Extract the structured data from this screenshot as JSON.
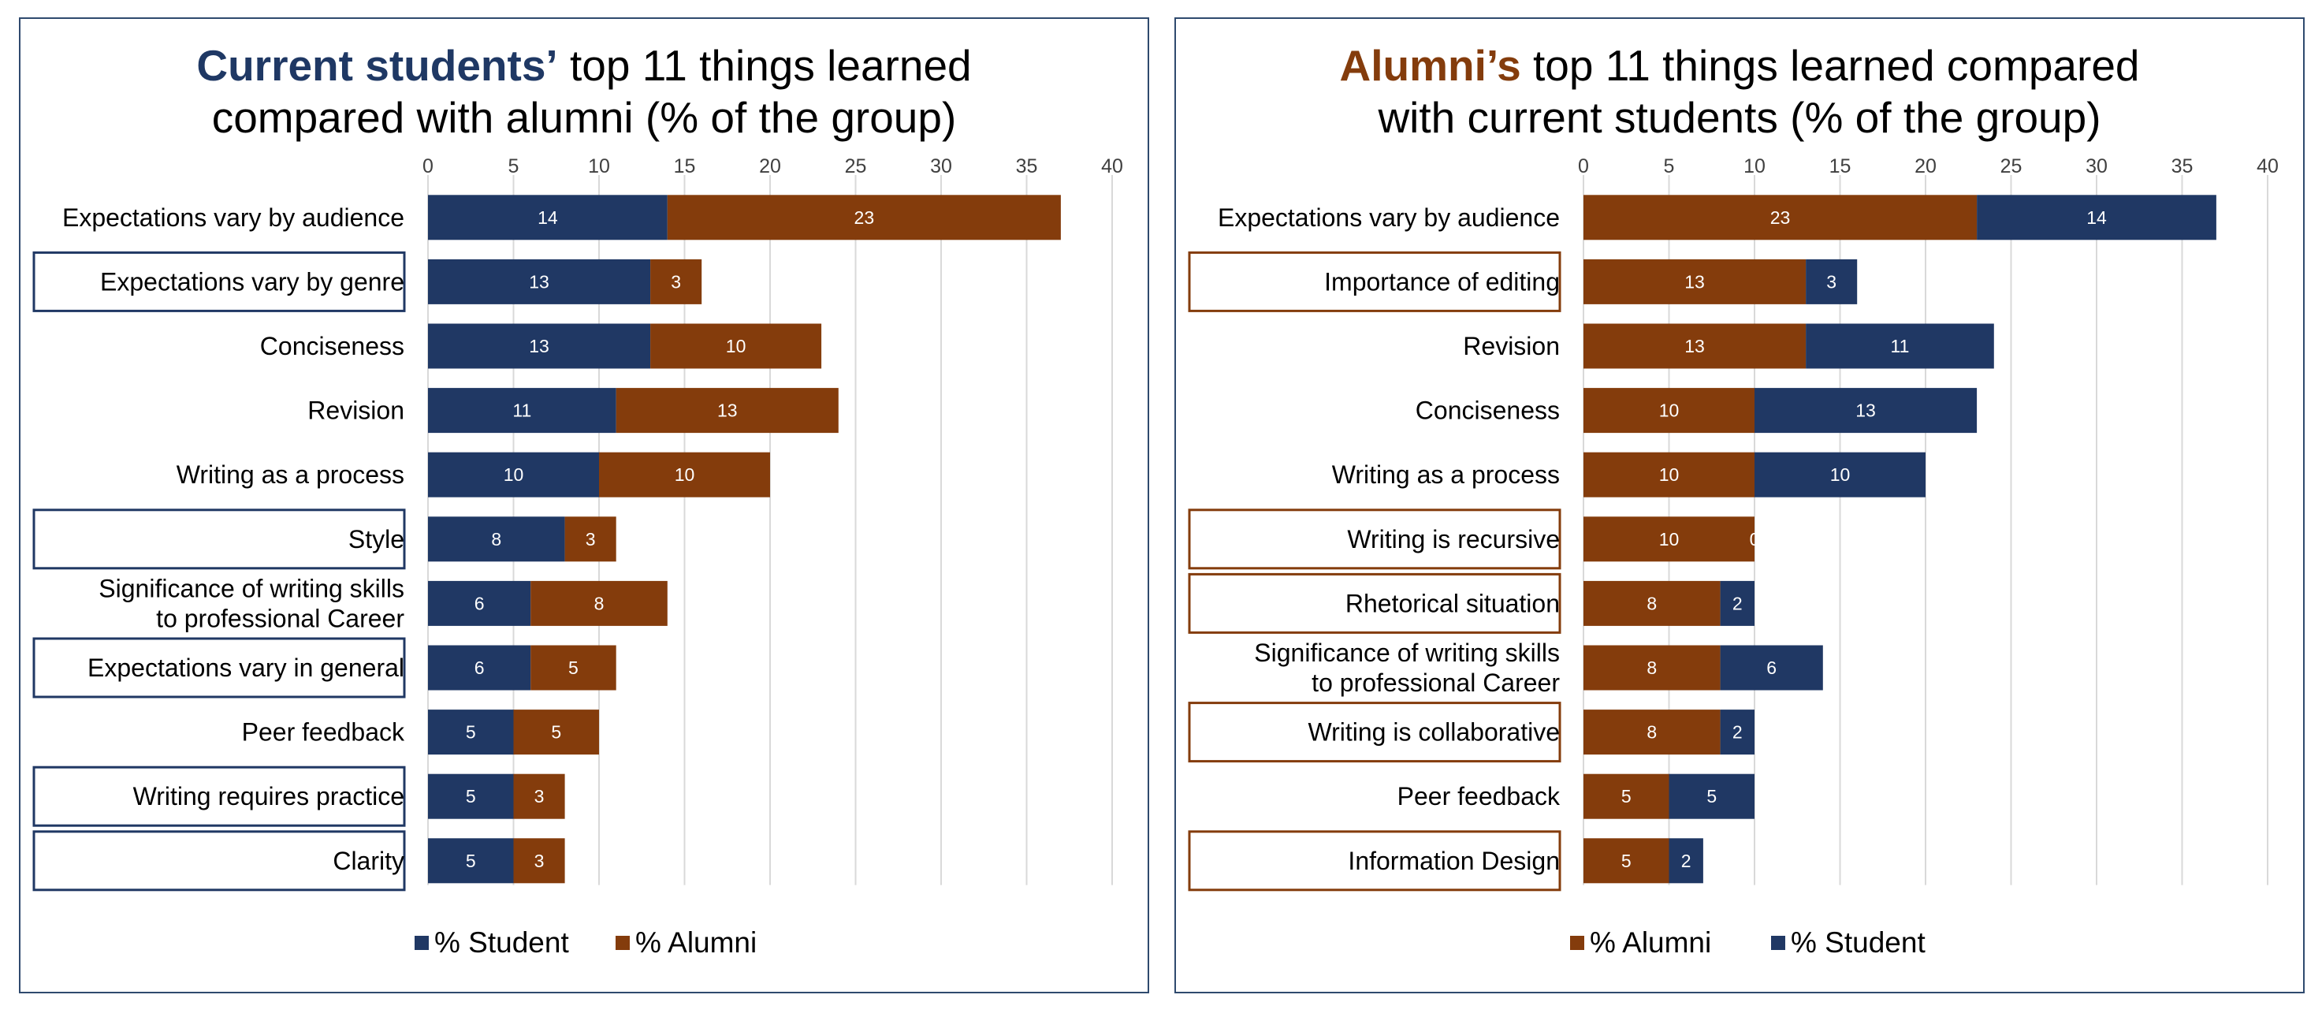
{
  "colors": {
    "student": "#203864",
    "alumni": "#843c0c",
    "grid": "#d9d9d9",
    "axis_text": "#404040"
  },
  "chart_data": [
    {
      "type": "bar",
      "orientation": "horizontal",
      "stacked": true,
      "title_emphasis": "Current students’",
      "title_rest": " top 11 things learned",
      "title_line2": "compared with alumni (% of the group)",
      "xlim": [
        0,
        40
      ],
      "xticks": [
        "0",
        "5",
        "10",
        "15",
        "20",
        "25",
        "30",
        "35",
        "40"
      ],
      "grid": true,
      "legend_placement": "bottom-center",
      "categories": [
        "Expectations vary by audience",
        "Expectations vary by genre",
        "Conciseness",
        "Revision",
        "Writing as a process",
        "Style",
        "Significance of writing skills|to professional Career",
        "Expectations vary in general",
        "Peer feedback",
        "Writing requires practice",
        "Clarity"
      ],
      "boxed": [
        false,
        true,
        false,
        false,
        false,
        true,
        false,
        true,
        false,
        true,
        true
      ],
      "box_color": "#203864",
      "series": [
        {
          "name": "% Student",
          "color": "#203864",
          "values": [
            14,
            13,
            13,
            11,
            10,
            8,
            6,
            6,
            5,
            5,
            5
          ],
          "labels": [
            "14",
            "13",
            "13",
            "11",
            "10",
            "8",
            "6",
            "6",
            "5",
            "5",
            "5"
          ]
        },
        {
          "name": "% Alumni",
          "color": "#843c0c",
          "values": [
            23,
            3,
            10,
            13,
            10,
            3,
            8,
            5,
            5,
            3,
            3
          ],
          "labels": [
            "23",
            "3",
            "10",
            "13",
            "10",
            "3",
            "8",
            "5",
            "5",
            "3",
            "3"
          ]
        }
      ]
    },
    {
      "type": "bar",
      "orientation": "horizontal",
      "stacked": true,
      "title_emphasis": "Alumni’s",
      "title_rest": " top 11 things learned compared",
      "title_line2": "with current students (% of the group)",
      "xlim": [
        0,
        40
      ],
      "xticks": [
        "0",
        "5",
        "10",
        "15",
        "20",
        "25",
        "30",
        "35",
        "40"
      ],
      "grid": true,
      "legend_placement": "bottom-center",
      "categories": [
        "Expectations vary by audience",
        "Importance of editing",
        "Revision",
        "Conciseness",
        "Writing as a process",
        "Writing is recursive",
        "Rhetorical situation",
        "Significance of writing skills|to professional Career",
        "Writing is collaborative",
        "Peer feedback",
        "Information Design"
      ],
      "boxed": [
        false,
        true,
        false,
        false,
        false,
        true,
        true,
        false,
        true,
        false,
        true
      ],
      "box_color": "#843c0c",
      "series": [
        {
          "name": "% Alumni",
          "color": "#843c0c",
          "values": [
            23,
            13,
            13,
            10,
            10,
            10,
            8,
            8,
            8,
            5,
            5
          ],
          "labels": [
            "23",
            "13",
            "13",
            "10",
            "10",
            "10",
            "8",
            "8",
            "8",
            "5",
            "5"
          ]
        },
        {
          "name": "% Student",
          "color": "#203864",
          "values": [
            14,
            3,
            11,
            13,
            10,
            0,
            2,
            6,
            2,
            5,
            2
          ],
          "labels": [
            "14",
            "3",
            "11",
            "13",
            "10",
            "0",
            "2",
            "6",
            "2",
            "5",
            "2"
          ]
        }
      ]
    }
  ]
}
